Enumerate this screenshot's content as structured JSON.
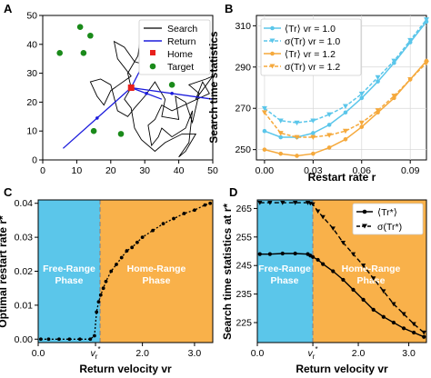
{
  "colors": {
    "blue": "#5bc6ea",
    "orange": "#f5a93c",
    "free_bg": "#5bc6ea",
    "home_bg": "#f9b14a",
    "return": "#1b1bdc",
    "home": "#e8201c",
    "target": "#1a8a1a"
  },
  "chart_data": [
    {
      "panel": "A",
      "type": "scatter",
      "xlim": [
        0,
        50
      ],
      "ylim": [
        0,
        50
      ],
      "xticks": [
        "0",
        "10",
        "20",
        "30",
        "40",
        "50"
      ],
      "yticks": [
        "0",
        "10",
        "20",
        "30",
        "40",
        "50"
      ],
      "legend": [
        "Search",
        "Return",
        "Home",
        "Target"
      ],
      "home": [
        26,
        25
      ],
      "targets": [
        [
          11,
          46
        ],
        [
          14,
          43
        ],
        [
          5,
          37
        ],
        [
          12,
          37
        ],
        [
          38,
          31
        ],
        [
          38,
          26
        ],
        [
          15,
          10
        ],
        [
          23,
          9
        ]
      ],
      "search_path": [
        [
          26,
          25
        ],
        [
          25,
          30
        ],
        [
          28,
          36
        ],
        [
          29,
          45
        ],
        [
          31,
          47
        ],
        [
          32,
          40
        ],
        [
          30,
          33
        ],
        [
          27,
          34
        ],
        [
          24,
          39
        ],
        [
          21,
          41
        ],
        [
          22,
          35
        ],
        [
          26,
          29
        ],
        [
          20,
          24
        ],
        [
          18,
          19
        ],
        [
          16,
          22
        ],
        [
          14,
          27
        ],
        [
          17,
          28
        ],
        [
          20,
          26
        ],
        [
          22,
          17
        ],
        [
          25,
          15
        ],
        [
          27,
          18
        ],
        [
          30,
          22
        ],
        [
          33,
          27
        ],
        [
          36,
          21
        ],
        [
          35,
          15
        ],
        [
          40,
          14
        ],
        [
          39,
          22
        ],
        [
          42,
          20
        ],
        [
          44,
          13
        ],
        [
          46,
          23
        ],
        [
          43,
          26
        ],
        [
          48,
          28
        ],
        [
          50,
          29
        ],
        [
          45,
          21
        ],
        [
          47,
          27
        ],
        [
          49,
          23
        ],
        [
          38,
          17
        ],
        [
          35,
          19
        ],
        [
          33,
          14
        ],
        [
          31,
          12
        ],
        [
          32,
          5
        ],
        [
          34,
          8
        ],
        [
          35,
          11
        ],
        [
          38,
          8
        ],
        [
          42,
          11
        ],
        [
          44,
          17
        ],
        [
          43,
          6
        ],
        [
          40,
          1
        ],
        [
          42,
          3
        ],
        [
          45,
          9
        ],
        [
          41,
          9
        ],
        [
          36,
          6
        ],
        [
          33,
          3
        ],
        [
          29,
          7
        ],
        [
          27,
          11
        ],
        [
          26,
          18
        ],
        [
          24,
          21
        ],
        [
          26,
          25
        ]
      ],
      "return_paths": [
        [
          [
            50,
            21
          ],
          [
            26,
            25
          ]
        ],
        [
          [
            36,
            48
          ],
          [
            26,
            25
          ]
        ],
        [
          [
            6,
            4
          ],
          [
            26,
            25
          ]
        ],
        [
          [
            35,
            21
          ],
          [
            26,
            25
          ]
        ]
      ]
    },
    {
      "panel": "B",
      "type": "line",
      "xlabel": "Restart rate r",
      "ylabel": "Search time statistics",
      "xlim": [
        -0.005,
        0.1
      ],
      "ylim": [
        245,
        315
      ],
      "xticks": [
        "0.00",
        "0.03",
        "0.06",
        "0.09"
      ],
      "yticks": [
        "250",
        "270",
        "290",
        "310"
      ],
      "x": [
        0.0,
        0.01,
        0.02,
        0.03,
        0.04,
        0.05,
        0.06,
        0.07,
        0.08,
        0.09,
        0.1
      ],
      "series": [
        {
          "name": "⟨Tr⟩   vr = 1.0",
          "values": [
            259,
            256,
            256,
            258,
            262,
            268,
            275,
            283,
            292,
            302,
            312
          ]
        },
        {
          "name": "σ(Tr)   vr = 1.0",
          "values": [
            270,
            264,
            263,
            264,
            267,
            271,
            277,
            285,
            293,
            303,
            313
          ]
        },
        {
          "name": "⟨Tr⟩   vr = 1.2",
          "values": [
            250,
            248,
            247,
            248,
            251,
            255,
            261,
            268,
            275,
            284,
            293
          ]
        },
        {
          "name": "σ(Tr)   vr = 1.2",
          "values": [
            268,
            258,
            256,
            256,
            257,
            259,
            263,
            269,
            276,
            284,
            292
          ]
        }
      ]
    },
    {
      "panel": "C",
      "type": "line",
      "xlabel": "Return velocity vr",
      "ylabel": "Optimal restart rate r*",
      "xlim": [
        0,
        3.35
      ],
      "ylim": [
        -0.001,
        0.041
      ],
      "vr_star": 1.1,
      "xticks": [
        "0.0",
        "vr*",
        "2.0",
        "3.0"
      ],
      "yticks": [
        "0.00",
        "0.01",
        "0.02",
        "0.03",
        "0.04"
      ],
      "phases": [
        "Free-Range Phase",
        "Home-Range Phase"
      ],
      "x": [
        0.05,
        0.2,
        0.4,
        0.6,
        0.8,
        1.0,
        1.08,
        1.12,
        1.16,
        1.2,
        1.25,
        1.3,
        1.4,
        1.5,
        1.6,
        1.7,
        1.8,
        1.9,
        2.0,
        2.2,
        2.4,
        2.6,
        2.8,
        3.0,
        3.2,
        3.3
      ],
      "values": [
        0.0,
        0.0,
        0.0,
        0.0,
        0.0,
        0.0,
        0.001,
        0.008,
        0.011,
        0.013,
        0.015,
        0.017,
        0.02,
        0.022,
        0.024,
        0.026,
        0.027,
        0.0285,
        0.03,
        0.032,
        0.034,
        0.0355,
        0.037,
        0.038,
        0.0395,
        0.04
      ]
    },
    {
      "panel": "D",
      "type": "line",
      "xlabel": "Return velocity vr",
      "ylabel": "Search time statistics at r*",
      "xlim": [
        0,
        3.35
      ],
      "ylim": [
        218,
        268
      ],
      "vr_star": 1.1,
      "xticks": [
        "0.0",
        "vr*",
        "2.0",
        "3.0"
      ],
      "yticks": [
        "225",
        "235",
        "245",
        "255",
        "265"
      ],
      "phases": [
        "Free-Range Phase",
        "Home-Range Phase"
      ],
      "x": [
        0.05,
        0.25,
        0.5,
        0.75,
        1.0,
        1.05,
        1.1,
        1.2,
        1.3,
        1.5,
        1.7,
        1.9,
        2.1,
        2.3,
        2.5,
        2.7,
        2.9,
        3.1,
        3.3
      ],
      "series": [
        {
          "name": "⟨Tr*⟩",
          "values": [
            249,
            249,
            249.2,
            249.2,
            249,
            248.5,
            248,
            247,
            245.5,
            243,
            240,
            236.5,
            233,
            229.5,
            227,
            225,
            223,
            221.5,
            220
          ]
        },
        {
          "name": "σ(Tr*)",
          "values": [
            267,
            267,
            267,
            267,
            267,
            266.8,
            266.5,
            264,
            262,
            258,
            253,
            249,
            245,
            240.5,
            236,
            231.5,
            228,
            224.5,
            221.5
          ]
        }
      ]
    }
  ]
}
